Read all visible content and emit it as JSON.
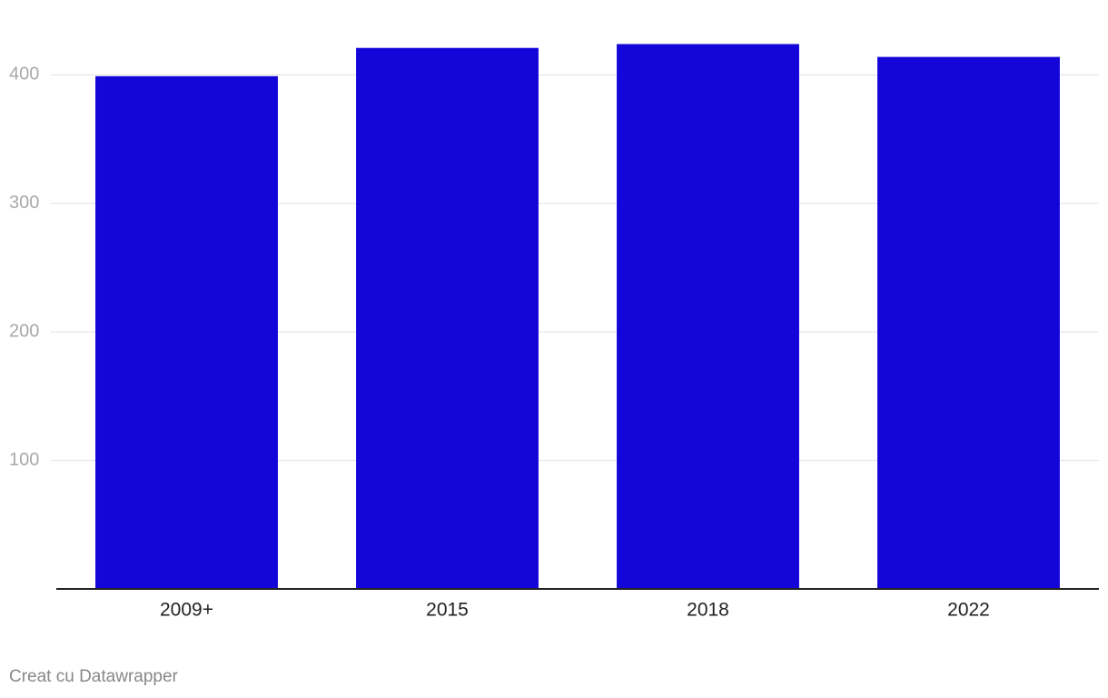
{
  "chart_data": {
    "type": "bar",
    "categories": [
      "2009+",
      "2015",
      "2018",
      "2022"
    ],
    "values": [
      399,
      421,
      424,
      414
    ],
    "color": "#1405d8",
    "ylim": [
      0,
      430
    ],
    "yticks": [
      100,
      200,
      300,
      400
    ],
    "grid": true,
    "footer": "Creat cu Datawrapper"
  }
}
